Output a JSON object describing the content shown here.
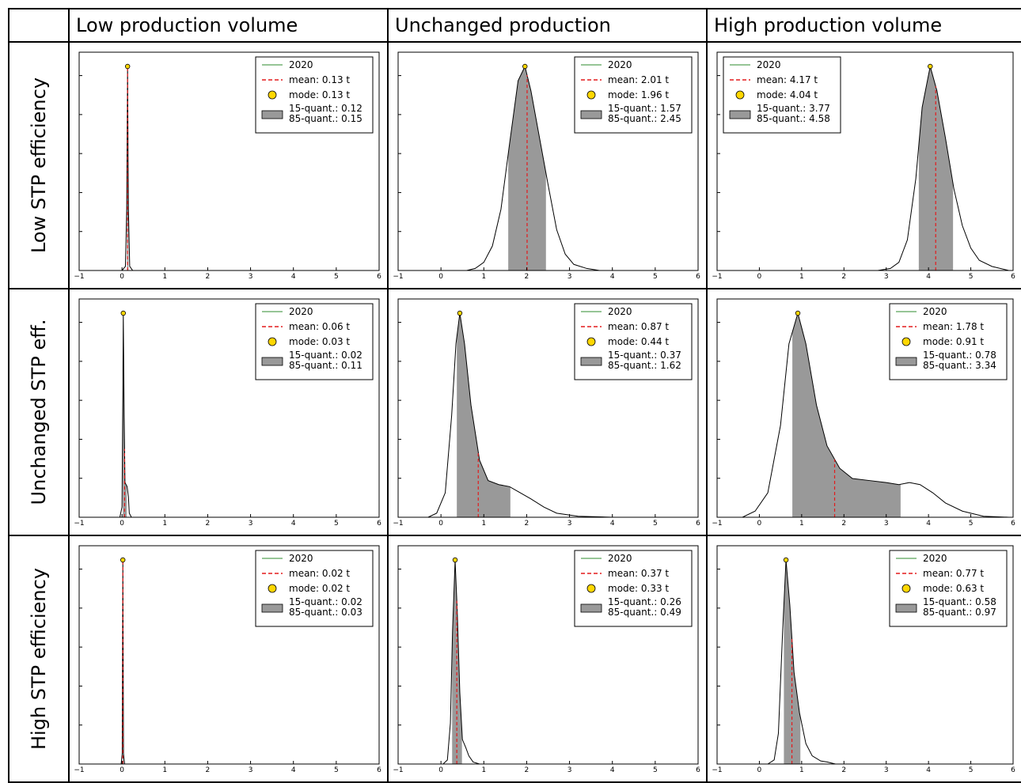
{
  "columns": [
    "Low production volume",
    "Unchanged production",
    "High production volume"
  ],
  "rows": [
    "Low STP efficiency",
    "Unchanged STP eff.",
    "High STP efficiency"
  ],
  "colors": {
    "kde": "#000000",
    "fill": "#999999",
    "mean": "#e31a1c",
    "mode": "#ffd700",
    "legend_line": "#2e8b2e"
  },
  "chart_data": [
    {
      "type": "area",
      "row": 0,
      "col": 0,
      "xlim": [
        -1,
        6
      ],
      "xticks": [
        "−1",
        "0",
        "1",
        "2",
        "3",
        "4",
        "5",
        "6"
      ],
      "legend": {
        "line": "2020",
        "mean": "mean: 0.13 t",
        "mode": "mode: 0.13 t",
        "q15": "15-quant.: 0.12",
        "q85": "85-quant.: 0.15"
      },
      "mean": 0.13,
      "mode": 0.13,
      "q15": 0.12,
      "q85": 0.15,
      "curve": [
        [
          0.0,
          0
        ],
        [
          0.08,
          0.02
        ],
        [
          0.11,
          0.3
        ],
        [
          0.13,
          1.0
        ],
        [
          0.15,
          0.3
        ],
        [
          0.18,
          0.02
        ],
        [
          0.25,
          0
        ]
      ]
    },
    {
      "type": "area",
      "row": 0,
      "col": 1,
      "xlim": [
        -1,
        6
      ],
      "xticks": [
        "−1",
        "0",
        "1",
        "2",
        "3",
        "4",
        "5",
        "6"
      ],
      "legend": {
        "line": "2020",
        "mean": "mean: 2.01 t",
        "mode": "mode: 1.96 t",
        "q15": "15-quant.: 1.57",
        "q85": "85-quant.: 2.45"
      },
      "mean": 2.01,
      "mode": 1.96,
      "q15": 1.57,
      "q85": 2.45,
      "curve": [
        [
          0.6,
          0
        ],
        [
          0.8,
          0.01
        ],
        [
          1.0,
          0.04
        ],
        [
          1.2,
          0.12
        ],
        [
          1.4,
          0.3
        ],
        [
          1.6,
          0.62
        ],
        [
          1.8,
          0.93
        ],
        [
          1.96,
          1.0
        ],
        [
          2.1,
          0.88
        ],
        [
          2.3,
          0.65
        ],
        [
          2.5,
          0.42
        ],
        [
          2.7,
          0.2
        ],
        [
          2.9,
          0.08
        ],
        [
          3.1,
          0.03
        ],
        [
          3.4,
          0.01
        ],
        [
          3.7,
          0
        ]
      ]
    },
    {
      "type": "area",
      "row": 0,
      "col": 2,
      "xlim": [
        -1,
        6
      ],
      "xticks": [
        "−1",
        "0",
        "1",
        "2",
        "3",
        "4",
        "5",
        "6"
      ],
      "legend": {
        "line": "2020",
        "mean": "mean: 4.17 t",
        "mode": "mode: 4.04 t",
        "q15": "15-quant.: 3.77",
        "q85": "85-quant.: 4.58"
      },
      "mean": 4.17,
      "mode": 4.04,
      "q15": 3.77,
      "q85": 4.58,
      "curve": [
        [
          2.8,
          0
        ],
        [
          3.1,
          0.01
        ],
        [
          3.3,
          0.04
        ],
        [
          3.5,
          0.15
        ],
        [
          3.7,
          0.45
        ],
        [
          3.85,
          0.8
        ],
        [
          4.04,
          1.0
        ],
        [
          4.2,
          0.88
        ],
        [
          4.4,
          0.65
        ],
        [
          4.6,
          0.4
        ],
        [
          4.8,
          0.22
        ],
        [
          5.0,
          0.11
        ],
        [
          5.2,
          0.05
        ],
        [
          5.5,
          0.02
        ],
        [
          5.9,
          0
        ]
      ]
    },
    {
      "type": "area",
      "row": 1,
      "col": 0,
      "xlim": [
        -1,
        6
      ],
      "xticks": [
        "−1",
        "0",
        "1",
        "2",
        "3",
        "4",
        "5",
        "6"
      ],
      "legend": {
        "line": "2020",
        "mean": "mean: 0.06 t",
        "mode": "mode: 0.03 t",
        "q15": "15-quant.: 0.02",
        "q85": "85-quant.: 0.11"
      },
      "mean": 0.06,
      "mode": 0.03,
      "q15": 0.02,
      "q85": 0.11,
      "curve": [
        [
          -0.05,
          0
        ],
        [
          0.0,
          0.05
        ],
        [
          0.02,
          0.6
        ],
        [
          0.03,
          1.0
        ],
        [
          0.05,
          0.5
        ],
        [
          0.07,
          0.17
        ],
        [
          0.12,
          0.15
        ],
        [
          0.15,
          0.1
        ],
        [
          0.17,
          0.02
        ],
        [
          0.22,
          0
        ]
      ]
    },
    {
      "type": "area",
      "row": 1,
      "col": 1,
      "xlim": [
        -1,
        6
      ],
      "xticks": [
        "−1",
        "0",
        "1",
        "2",
        "3",
        "4",
        "5",
        "6"
      ],
      "legend": {
        "line": "2020",
        "mean": "mean: 0.87 t",
        "mode": "mode: 0.44 t",
        "q15": "15-quant.: 0.37",
        "q85": "85-quant.: 1.62"
      },
      "mean": 0.87,
      "mode": 0.44,
      "q15": 0.37,
      "q85": 1.62,
      "curve": [
        [
          -0.3,
          0
        ],
        [
          -0.1,
          0.02
        ],
        [
          0.1,
          0.12
        ],
        [
          0.25,
          0.5
        ],
        [
          0.35,
          0.85
        ],
        [
          0.44,
          1.0
        ],
        [
          0.55,
          0.85
        ],
        [
          0.7,
          0.55
        ],
        [
          0.9,
          0.28
        ],
        [
          1.1,
          0.18
        ],
        [
          1.35,
          0.16
        ],
        [
          1.6,
          0.15
        ],
        [
          1.85,
          0.12
        ],
        [
          2.1,
          0.09
        ],
        [
          2.4,
          0.05
        ],
        [
          2.7,
          0.02
        ],
        [
          3.2,
          0.005
        ],
        [
          4.0,
          0
        ]
      ]
    },
    {
      "type": "area",
      "row": 1,
      "col": 2,
      "xlim": [
        -1,
        6
      ],
      "xticks": [
        "−1",
        "0",
        "1",
        "2",
        "3",
        "4",
        "5",
        "6"
      ],
      "legend": {
        "line": "2020",
        "mean": "mean: 1.78 t",
        "mode": "mode: 0.91 t",
        "q15": "15-quant.: 0.78",
        "q85": "85-quant.: 3.34"
      },
      "mean": 1.78,
      "mode": 0.91,
      "q15": 0.78,
      "q85": 3.34,
      "curve": [
        [
          -0.4,
          0
        ],
        [
          -0.1,
          0.03
        ],
        [
          0.2,
          0.12
        ],
        [
          0.5,
          0.45
        ],
        [
          0.7,
          0.85
        ],
        [
          0.91,
          1.0
        ],
        [
          1.1,
          0.85
        ],
        [
          1.35,
          0.55
        ],
        [
          1.6,
          0.35
        ],
        [
          1.9,
          0.24
        ],
        [
          2.2,
          0.19
        ],
        [
          2.6,
          0.18
        ],
        [
          3.0,
          0.17
        ],
        [
          3.3,
          0.16
        ],
        [
          3.55,
          0.17
        ],
        [
          3.8,
          0.16
        ],
        [
          4.1,
          0.12
        ],
        [
          4.4,
          0.07
        ],
        [
          4.8,
          0.03
        ],
        [
          5.3,
          0.005
        ],
        [
          5.9,
          0
        ]
      ]
    },
    {
      "type": "area",
      "row": 2,
      "col": 0,
      "xlim": [
        -1,
        6
      ],
      "xticks": [
        "−1",
        "0",
        "1",
        "2",
        "3",
        "4",
        "5",
        "6"
      ],
      "legend": {
        "line": "2020",
        "mean": "mean: 0.02 t",
        "mode": "mode: 0.02 t",
        "q15": "15-quant.: 0.02",
        "q85": "85-quant.: 0.03"
      },
      "mean": 0.02,
      "mode": 0.02,
      "q15": 0.02,
      "q85": 0.03,
      "curve": [
        [
          -0.02,
          0
        ],
        [
          0.005,
          0.05
        ],
        [
          0.015,
          0.7
        ],
        [
          0.02,
          1.0
        ],
        [
          0.025,
          0.7
        ],
        [
          0.035,
          0.05
        ],
        [
          0.06,
          0
        ]
      ]
    },
    {
      "type": "area",
      "row": 2,
      "col": 1,
      "xlim": [
        -1,
        6
      ],
      "xticks": [
        "−1",
        "0",
        "1",
        "2",
        "3",
        "4",
        "5",
        "6"
      ],
      "legend": {
        "line": "2020",
        "mean": "mean: 0.37 t",
        "mode": "mode: 0.33 t",
        "q15": "15-quant.: 0.26",
        "q85": "85-quant.: 0.49"
      },
      "mean": 0.37,
      "mode": 0.33,
      "q15": 0.26,
      "q85": 0.49,
      "curve": [
        [
          0.05,
          0
        ],
        [
          0.15,
          0.02
        ],
        [
          0.22,
          0.2
        ],
        [
          0.27,
          0.65
        ],
        [
          0.33,
          1.0
        ],
        [
          0.38,
          0.75
        ],
        [
          0.44,
          0.35
        ],
        [
          0.5,
          0.12
        ],
        [
          0.58,
          0.08
        ],
        [
          0.65,
          0.04
        ],
        [
          0.75,
          0.01
        ],
        [
          0.9,
          0
        ]
      ]
    },
    {
      "type": "area",
      "row": 2,
      "col": 2,
      "xlim": [
        -1,
        6
      ],
      "xticks": [
        "−1",
        "0",
        "1",
        "2",
        "3",
        "4",
        "5",
        "6"
      ],
      "legend": {
        "line": "2020",
        "mean": "mean: 0.77 t",
        "mode": "mode: 0.63 t",
        "q15": "15-quant.: 0.58",
        "q85": "85-quant.: 0.97"
      },
      "mean": 0.77,
      "mode": 0.63,
      "q15": 0.58,
      "q85": 0.97,
      "curve": [
        [
          0.2,
          0
        ],
        [
          0.35,
          0.02
        ],
        [
          0.45,
          0.15
        ],
        [
          0.55,
          0.65
        ],
        [
          0.63,
          1.0
        ],
        [
          0.72,
          0.78
        ],
        [
          0.82,
          0.45
        ],
        [
          0.95,
          0.25
        ],
        [
          1.1,
          0.1
        ],
        [
          1.25,
          0.04
        ],
        [
          1.45,
          0.015
        ],
        [
          1.6,
          0.01
        ],
        [
          1.8,
          0
        ]
      ]
    }
  ]
}
